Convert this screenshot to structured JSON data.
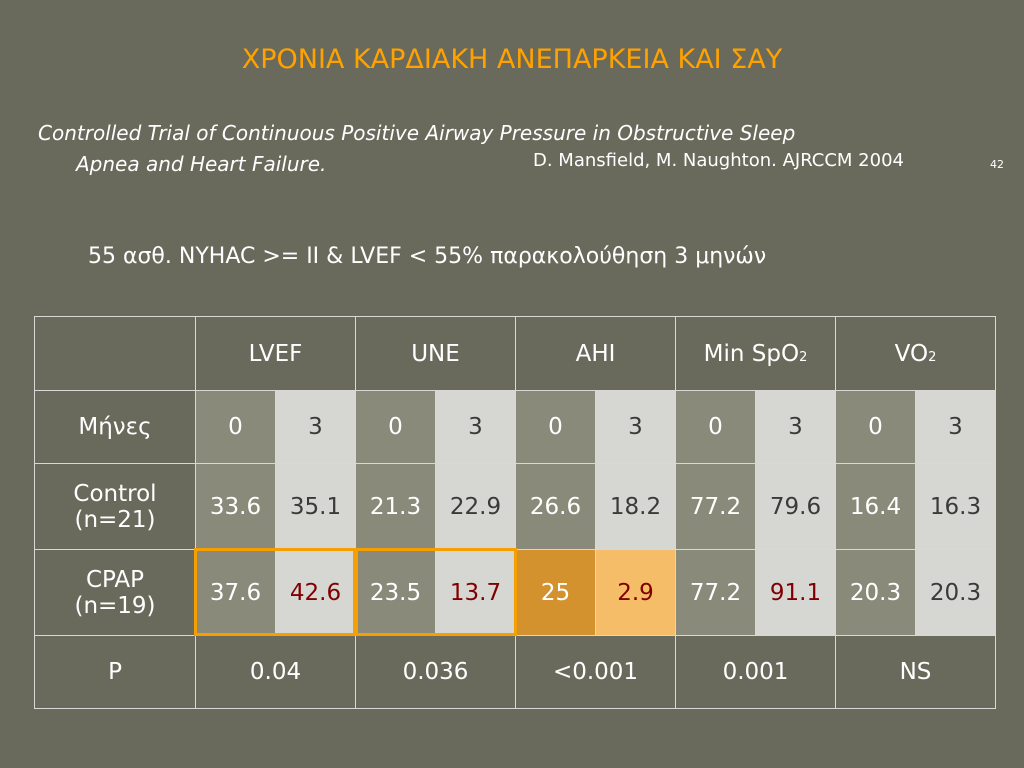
{
  "header": {
    "title": "ΧΡΟΝΙΑ ΚΑΡΔΙΑΚΗ ΑΝΕΠΑΡΚΕΙΑ ΚΑΙ ΣΑΥ",
    "citation": [
      "Controlled Trial of Continuous Positive Airway Pressure in Obstructive Sleep",
      "Apnea and Heart Failure."
    ],
    "authors": "D. Mansfield, M. Naughton. AJRCCM 2004",
    "slide_number": "42"
  },
  "subtitle": "55 ασθ. NYHAC >= II  &  LVEF < 55%  παρακολούθηση 3 μηνών",
  "table": {
    "columns": [
      {
        "text": "LVEF"
      },
      {
        "text": "UNE"
      },
      {
        "text": "AHI"
      },
      {
        "text": "Min SpO",
        "sub": "2"
      },
      {
        "text": "VO",
        "sub": "2"
      }
    ],
    "months_label": "Μήνες",
    "months": [
      0,
      3,
      0,
      3,
      0,
      3,
      0,
      3,
      0,
      3
    ],
    "rows": [
      {
        "label": [
          "Control",
          "(n=21)"
        ],
        "values": [
          33.6,
          35.1,
          21.3,
          22.9,
          26.6,
          18.2,
          77.2,
          79.6,
          16.4,
          16.3
        ]
      },
      {
        "label": [
          "CPAP",
          "(n=19)"
        ],
        "values": [
          37.6,
          42.6,
          23.5,
          13.7,
          25,
          2.9,
          77.2,
          91.1,
          20.3,
          20.3
        ]
      }
    ],
    "p_row": {
      "label": "P",
      "values": [
        0.04,
        0.036,
        "<0.001",
        0.001,
        "NS"
      ]
    }
  }
}
